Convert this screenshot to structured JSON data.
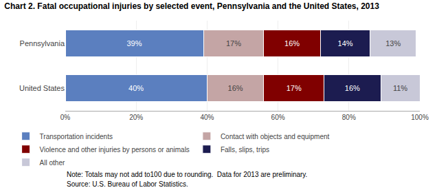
{
  "chart_data": {
    "type": "bar",
    "orientation": "horizontal",
    "stacked": true,
    "title": "Chart 2. Fatal occupational injuries by selected event, Pennsylvania and the United States, 2013",
    "categories": [
      "Pennsylvania",
      "United States"
    ],
    "series": [
      {
        "name": "Transportation incidents",
        "color": "#5B7FBF",
        "values": [
          39,
          40
        ],
        "value_labels": [
          "39%",
          "40%"
        ]
      },
      {
        "name": "Contact with objects and equipment",
        "color": "#C4A5A5",
        "values": [
          17,
          16
        ],
        "value_labels": [
          "17%",
          "16%"
        ]
      },
      {
        "name": "Violence and other injuries by persons or animals",
        "color": "#800000",
        "values": [
          16,
          17
        ],
        "value_labels": [
          "16%",
          "17%"
        ]
      },
      {
        "name": "Falls, slips, trips",
        "color": "#1C1C50",
        "values": [
          14,
          16
        ],
        "value_labels": [
          "14%",
          "16%"
        ]
      },
      {
        "name": "All other",
        "color": "#C8C8D8",
        "values": [
          13,
          11
        ],
        "value_labels": [
          "13%",
          "11%"
        ]
      }
    ],
    "xlim": [
      0,
      100
    ],
    "xticks": [
      {
        "value": 0,
        "label": "0%"
      },
      {
        "value": 20,
        "label": "20%"
      },
      {
        "value": 40,
        "label": "40%"
      },
      {
        "value": 60,
        "label": "60%"
      },
      {
        "value": 80,
        "label": "80%"
      },
      {
        "value": 100,
        "label": "100%"
      }
    ],
    "grid": true,
    "legend": "bottom",
    "data_labels": true,
    "annotations": [
      "Note: Totals may not add to100 due to rounding.  Data for 2013 are preliminary.",
      "Source: U.S. Bureau of Labor Statistics."
    ]
  }
}
